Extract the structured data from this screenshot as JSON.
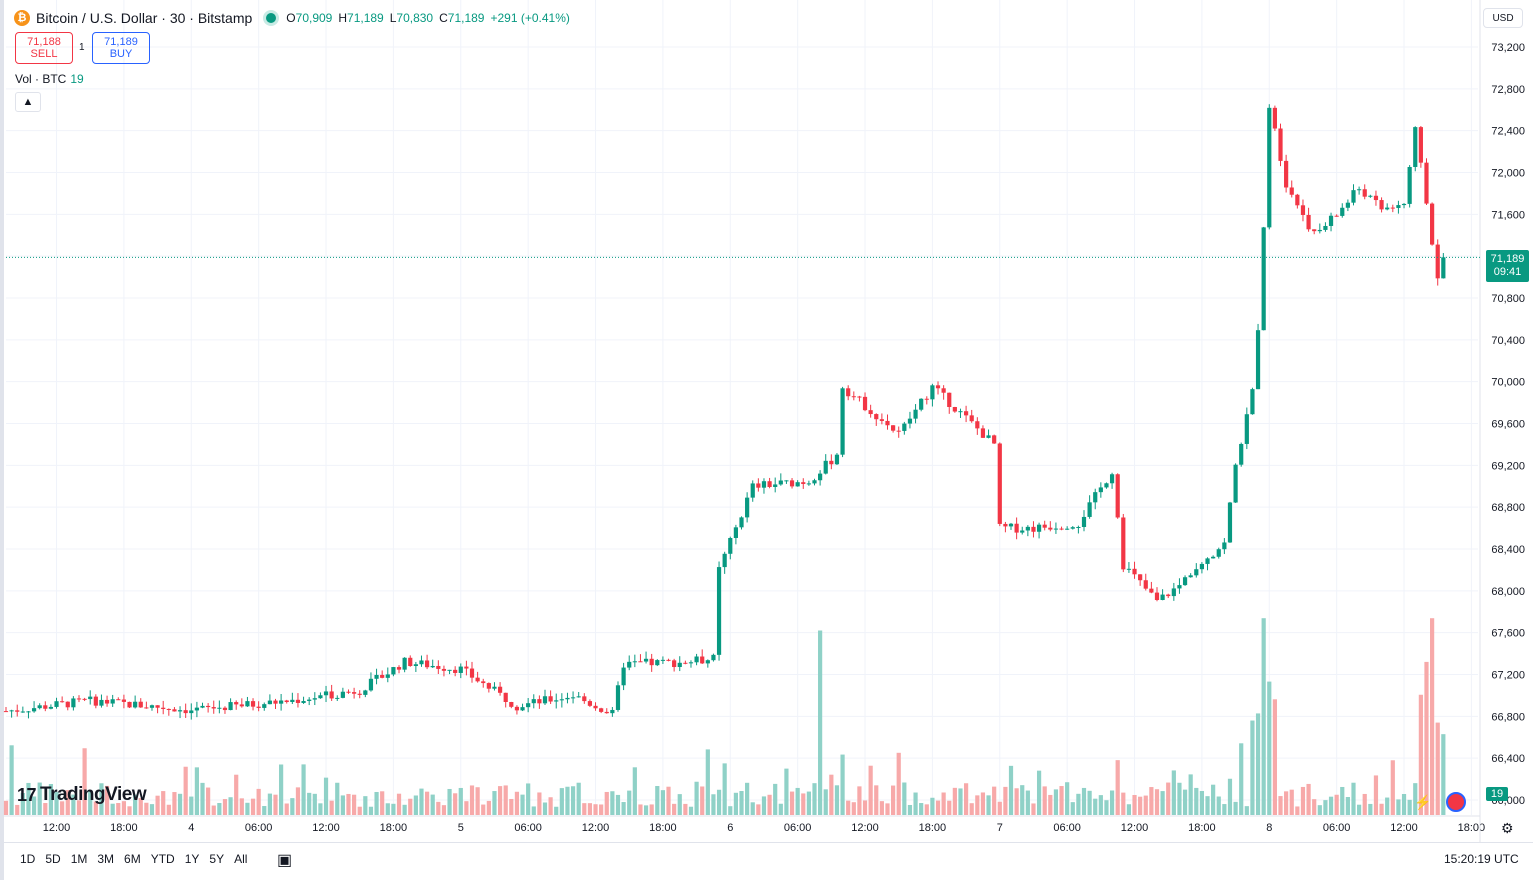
{
  "header": {
    "symbol": "Bitcoin / U.S. Dollar · 30 · Bitstamp",
    "open_key": "O",
    "open": "70,909",
    "high_key": "H",
    "high": "71,189",
    "low_key": "L",
    "low": "70,830",
    "close_key": "C",
    "close": "71,189",
    "change": "+291 (+0.41%)"
  },
  "trade": {
    "sell_price": "71,188",
    "sell_label": "SELL",
    "spread": "1",
    "buy_price": "71,189",
    "buy_label": "BUY"
  },
  "volume_legend": {
    "label": "Vol · BTC",
    "value": "19"
  },
  "currency": "USD",
  "last_price": {
    "price": "71,189",
    "countdown": "09:41"
  },
  "last_volume": "19",
  "brand": "TradingView",
  "ranges": [
    "1D",
    "5D",
    "1M",
    "3M",
    "6M",
    "YTD",
    "1Y",
    "5Y",
    "All"
  ],
  "clock": "15:20:19 UTC",
  "colors": {
    "up": "#089981",
    "down": "#f23645",
    "up_vol": "#8fd1c7",
    "down_vol": "#f7a9a9",
    "grid": "#f0f3fa"
  },
  "chart_data": {
    "type": "candlestick",
    "y_ticks": [
      66000,
      66400,
      66800,
      67200,
      67600,
      68000,
      68400,
      68800,
      69200,
      69600,
      70000,
      70400,
      70800,
      71200,
      71600,
      72000,
      72400,
      72800,
      73200
    ],
    "y_tick_labels": [
      "66,000",
      "66,400",
      "66,800",
      "67,200",
      "67,600",
      "68,000",
      "68,400",
      "68,800",
      "69,200",
      "69,600",
      "70,000",
      "70,400",
      "70,800",
      "71,200",
      "71,600",
      "72,000",
      "72,400",
      "72,800",
      "73,200"
    ],
    "x_tick_labels": [
      "12:00",
      "18:00",
      "4",
      "06:00",
      "12:00",
      "18:00",
      "5",
      "06:00",
      "12:00",
      "18:00",
      "6",
      "06:00",
      "12:00",
      "18:00",
      "7",
      "06:00",
      "12:00",
      "18:00",
      "8",
      "06:00",
      "12:00",
      "18:00"
    ],
    "x_tick_hours": [
      12,
      18,
      24,
      30,
      36,
      42,
      48,
      54,
      60,
      66,
      72,
      78,
      84,
      90,
      96,
      102,
      108,
      114,
      120,
      126,
      132,
      138
    ],
    "x_start_hour": 7.5,
    "volume_series": "Vol · BTC",
    "key_points": [
      {
        "hour": 7.5,
        "close": 66850
      },
      {
        "hour": 15,
        "close": 66950
      },
      {
        "hour": 24,
        "close": 66860
      },
      {
        "hour": 33,
        "close": 66950
      },
      {
        "hour": 39,
        "close": 67050
      },
      {
        "hour": 43,
        "close": 67320
      },
      {
        "hour": 48,
        "close": 67250
      },
      {
        "hour": 53,
        "close": 66900
      },
      {
        "hour": 58,
        "close": 67000
      },
      {
        "hour": 61.5,
        "close": 66820
      },
      {
        "hour": 62.5,
        "close": 67300
      },
      {
        "hour": 68,
        "close": 67320
      },
      {
        "hour": 70.5,
        "close": 67350
      },
      {
        "hour": 71,
        "close": 68200
      },
      {
        "hour": 74,
        "close": 69000
      },
      {
        "hour": 79,
        "close": 69050
      },
      {
        "hour": 81.5,
        "close": 69300
      },
      {
        "hour": 82,
        "close": 69950
      },
      {
        "hour": 87,
        "close": 69500
      },
      {
        "hour": 90,
        "close": 69950
      },
      {
        "hour": 95.5,
        "close": 69400
      },
      {
        "hour": 96,
        "close": 68600
      },
      {
        "hour": 99,
        "close": 68600
      },
      {
        "hour": 103,
        "close": 68650
      },
      {
        "hour": 106,
        "close": 69150
      },
      {
        "hour": 107,
        "close": 68250
      },
      {
        "hour": 110,
        "close": 67900
      },
      {
        "hour": 112,
        "close": 68050
      },
      {
        "hour": 113.5,
        "close": 68250
      },
      {
        "hour": 116,
        "close": 68450
      },
      {
        "hour": 117,
        "close": 69200
      },
      {
        "hour": 118.5,
        "close": 69900
      },
      {
        "hour": 119,
        "close": 70450
      },
      {
        "hour": 119.5,
        "close": 71450
      },
      {
        "hour": 120,
        "close": 72650
      },
      {
        "hour": 121.5,
        "close": 71900
      },
      {
        "hour": 124,
        "close": 71400
      },
      {
        "hour": 126,
        "close": 71600
      },
      {
        "hour": 128,
        "close": 71850
      },
      {
        "hour": 130,
        "close": 71650
      },
      {
        "hour": 132,
        "close": 71700
      },
      {
        "hour": 133,
        "close": 72400
      },
      {
        "hour": 134,
        "close": 71700
      },
      {
        "hour": 135,
        "close": 70950
      },
      {
        "hour": 135.5,
        "close": 71189
      }
    ],
    "volume_spikes": [
      {
        "hour": 8,
        "value": 17
      },
      {
        "hour": 70,
        "value": 16
      },
      {
        "hour": 80,
        "value": 45
      },
      {
        "hour": 119.5,
        "value": 48
      },
      {
        "hour": 134.5,
        "value": 48
      }
    ],
    "volume_max": 50
  }
}
